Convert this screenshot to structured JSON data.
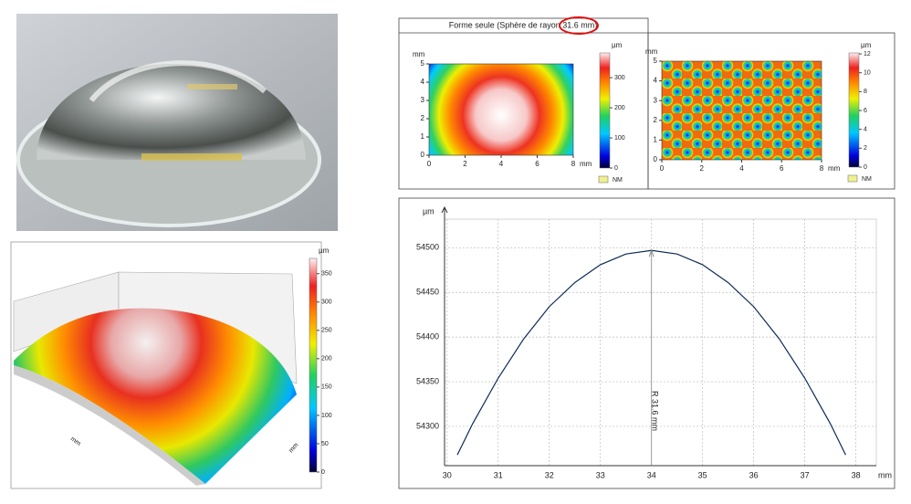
{
  "chart_data": [
    {
      "type": "surface3d",
      "colorbar_label": "µm",
      "colorbar_lim": [
        0,
        377
      ],
      "colorbar_ticks": [
        0,
        50,
        100,
        150,
        200,
        250,
        300,
        350
      ],
      "axis_labels": [
        "mm",
        "mm"
      ]
    },
    {
      "type": "heatmap",
      "title": "Forme seule (Sphère de rayon 31.6 mm)",
      "ylabel": "mm",
      "xlabel": "mm",
      "xlim": [
        0,
        8
      ],
      "xticks": [
        0,
        2,
        4,
        6,
        8
      ],
      "ylim": [
        0,
        5
      ],
      "yticks": [
        0,
        1,
        2,
        3,
        4,
        5
      ],
      "colorbar_label": "µm",
      "colorbar_lim": [
        0,
        382
      ],
      "colorbar_ticks": [
        0,
        100,
        200,
        300
      ],
      "nm_label": "NM"
    },
    {
      "type": "heatmap",
      "ylabel": "mm",
      "xlabel": "mm",
      "xlim": [
        0,
        8
      ],
      "xticks": [
        0,
        2,
        4,
        6,
        8
      ],
      "ylim": [
        0,
        5
      ],
      "yticks": [
        0,
        1,
        2,
        3,
        4,
        5
      ],
      "colorbar_lim": [
        0,
        12.1
      ],
      "colorbar_ticks": [
        0,
        2,
        4,
        6,
        8,
        10,
        12
      ],
      "colorbar_label": "µm",
      "nm_label": "NM"
    },
    {
      "type": "line",
      "ylabel": "µm",
      "xlabel": "mm",
      "annotation": "R 31.6 mm",
      "x": [
        30.2,
        30.5,
        31,
        31.5,
        32,
        32.5,
        33,
        33.5,
        34,
        34.5,
        35,
        35.5,
        36,
        36.5,
        37,
        37.5,
        37.8
      ],
      "series": [
        {
          "color": "#0b2a55",
          "values": [
            54268,
            54303,
            54354,
            54398,
            54434,
            54461,
            54481,
            54493,
            54497,
            54493,
            54481,
            54461,
            54434,
            54398,
            54354,
            54303,
            54268
          ]
        }
      ],
      "xlim": [
        29.95,
        38.4
      ],
      "xticks": [
        30,
        31,
        32,
        33,
        34,
        35,
        36,
        37,
        38
      ],
      "ylim": [
        54256,
        54532
      ],
      "yticks": [
        54300,
        54350,
        54400,
        54450,
        54500
      ],
      "grid": true
    }
  ]
}
